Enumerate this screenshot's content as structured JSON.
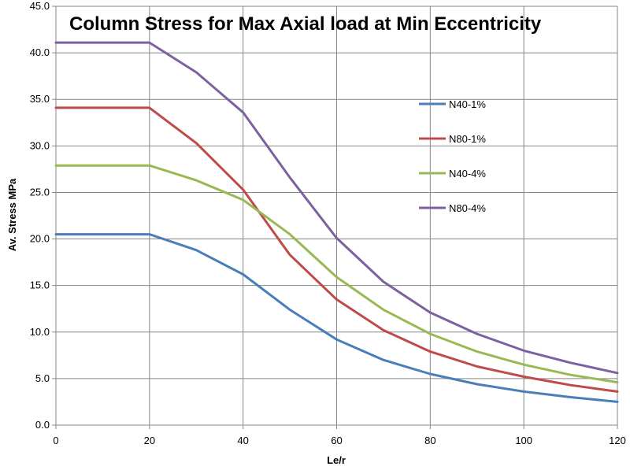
{
  "chart_data": {
    "type": "line",
    "title": "Column Stress for Max Axial load at Min Eccentricity",
    "xlabel": "Le/r",
    "ylabel": "Av. Stress MPa",
    "x": [
      0,
      10,
      20,
      30,
      40,
      50,
      60,
      70,
      80,
      90,
      100,
      110,
      120
    ],
    "xlim": [
      0,
      120
    ],
    "ylim": [
      0,
      45
    ],
    "x_ticks": [
      "0",
      "20",
      "40",
      "60",
      "80",
      "100",
      "120"
    ],
    "y_ticks": [
      "0.0",
      "5.0",
      "10.0",
      "15.0",
      "20.0",
      "25.0",
      "30.0",
      "35.0",
      "40.0",
      "45.0"
    ],
    "grid": true,
    "legend_position": "right",
    "series": [
      {
        "name": "N40-1%",
        "color": "#4a7ebb",
        "values": [
          20.5,
          20.5,
          20.5,
          18.8,
          16.2,
          12.4,
          9.2,
          7.0,
          5.5,
          4.4,
          3.6,
          3.0,
          2.5
        ]
      },
      {
        "name": "N80-1%",
        "color": "#be4b48",
        "values": [
          34.1,
          34.1,
          34.1,
          30.3,
          25.3,
          18.3,
          13.5,
          10.2,
          7.9,
          6.3,
          5.2,
          4.3,
          3.6
        ]
      },
      {
        "name": "N40-4%",
        "color": "#98b954",
        "values": [
          27.9,
          27.9,
          27.9,
          26.3,
          24.2,
          20.5,
          15.9,
          12.4,
          9.8,
          7.9,
          6.5,
          5.4,
          4.6
        ]
      },
      {
        "name": "N80-4%",
        "color": "#7d60a0",
        "values": [
          41.1,
          41.1,
          41.1,
          37.9,
          33.6,
          26.6,
          20.1,
          15.4,
          12.1,
          9.8,
          8.0,
          6.7,
          5.6
        ]
      }
    ]
  }
}
